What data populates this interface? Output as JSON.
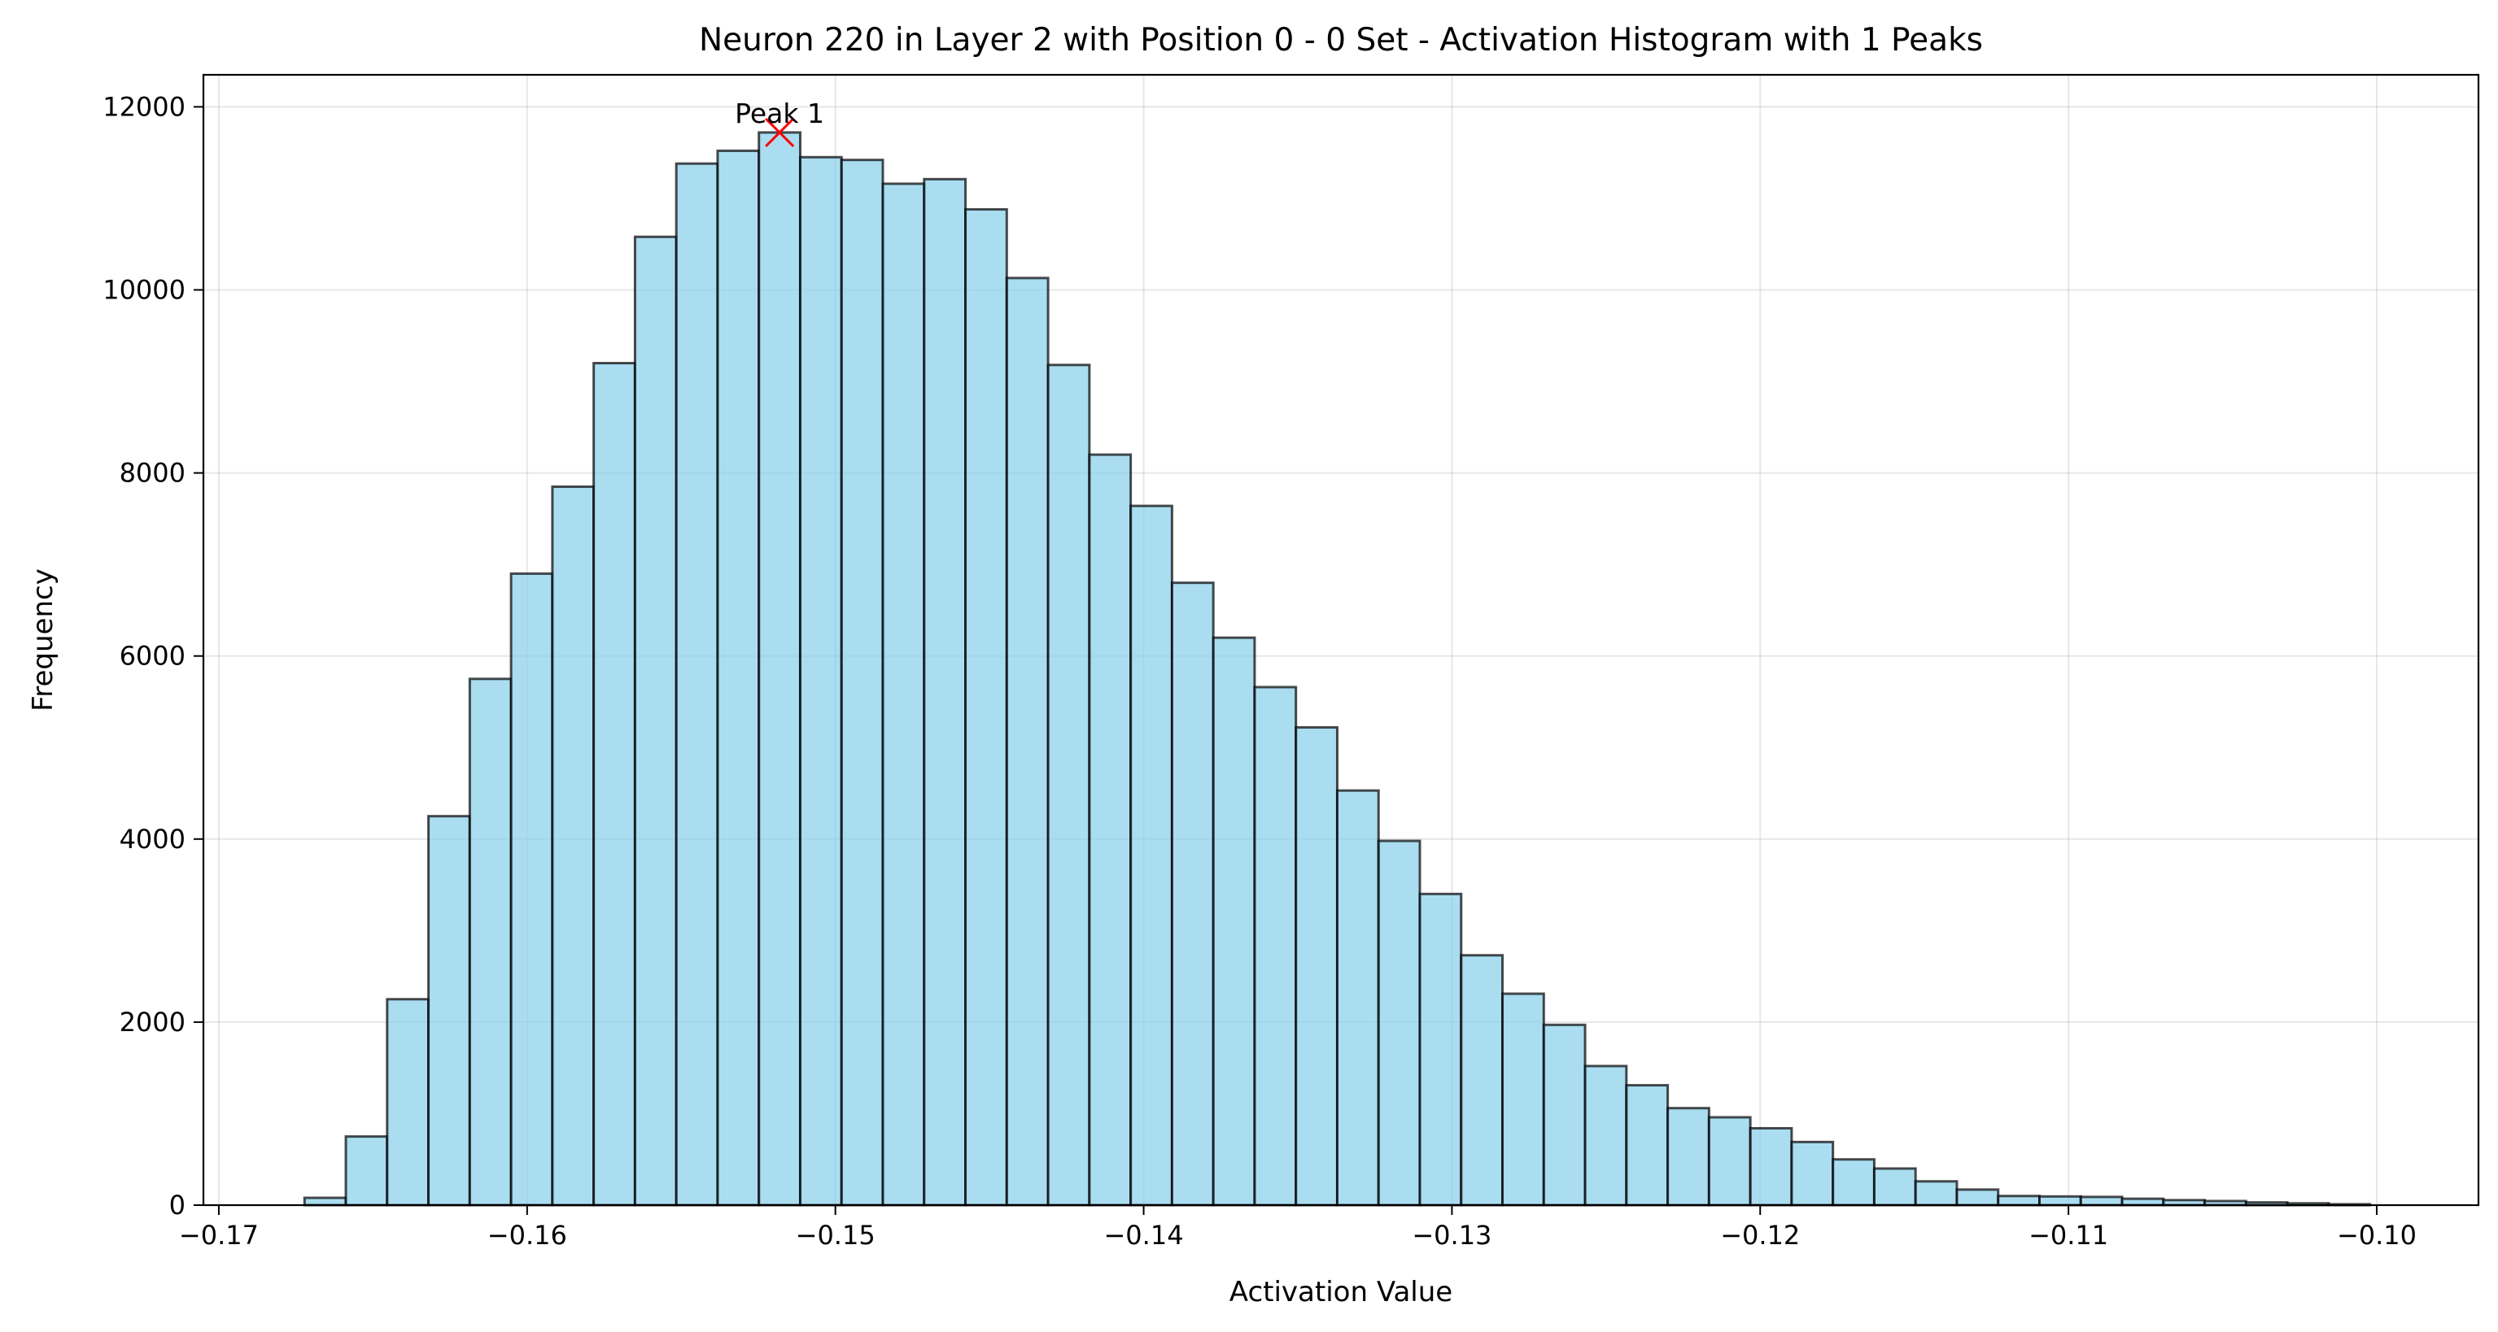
{
  "chart_data": {
    "type": "bar",
    "title": "Neuron 220 in Layer 2 with Position 0 - 0 Set - Activation Histogram with 1 Peaks",
    "xlabel": "Activation Value",
    "ylabel": "Frequency",
    "xlim": [
      -0.1705,
      -0.0967
    ],
    "ylim": [
      0,
      12350
    ],
    "grid": true,
    "colors": {
      "bar_fill": "#87CEEB",
      "bar_edge": "#000000",
      "peak_marker": "#ff0000"
    },
    "x_ticks": [
      {
        "value": -0.17,
        "label": "−0.17"
      },
      {
        "value": -0.16,
        "label": "−0.16"
      },
      {
        "value": -0.15,
        "label": "−0.15"
      },
      {
        "value": -0.14,
        "label": "−0.14"
      },
      {
        "value": -0.13,
        "label": "−0.13"
      },
      {
        "value": -0.12,
        "label": "−0.12"
      },
      {
        "value": -0.11,
        "label": "−0.11"
      },
      {
        "value": -0.1,
        "label": "−0.10"
      }
    ],
    "y_ticks": [
      {
        "value": 0,
        "label": "0"
      },
      {
        "value": 2000,
        "label": "2000"
      },
      {
        "value": 4000,
        "label": "4000"
      },
      {
        "value": 6000,
        "label": "6000"
      },
      {
        "value": 8000,
        "label": "8000"
      },
      {
        "value": 10000,
        "label": "10000"
      },
      {
        "value": 12000,
        "label": "12000"
      }
    ],
    "bin_edges": [
      -0.16722,
      -0.16588,
      -0.16454,
      -0.1632,
      -0.16186,
      -0.16052,
      -0.15918,
      -0.15784,
      -0.1565,
      -0.15516,
      -0.15382,
      -0.15248,
      -0.15114,
      -0.1498,
      -0.14846,
      -0.14712,
      -0.14578,
      -0.14444,
      -0.1431,
      -0.14176,
      -0.14042,
      -0.13908,
      -0.13774,
      -0.1364,
      -0.13506,
      -0.13372,
      -0.13238,
      -0.13104,
      -0.1297,
      -0.12836,
      -0.12702,
      -0.12568,
      -0.12434,
      -0.123,
      -0.12166,
      -0.12032,
      -0.11898,
      -0.11764,
      -0.1163,
      -0.11496,
      -0.11362,
      -0.11228,
      -0.11094,
      -0.1096,
      -0.10826,
      -0.10692,
      -0.10558,
      -0.10424,
      -0.1029,
      -0.10156,
      -0.10022
    ],
    "values": [
      80,
      750,
      2250,
      4250,
      5750,
      6900,
      7850,
      9200,
      10580,
      11380,
      11520,
      11720,
      11450,
      11420,
      11160,
      11210,
      10880,
      10130,
      9180,
      8200,
      7640,
      6800,
      6200,
      5660,
      5220,
      4530,
      3980,
      3400,
      2730,
      2310,
      1970,
      1520,
      1310,
      1060,
      960,
      840,
      690,
      500,
      400,
      260,
      170,
      100,
      95,
      90,
      70,
      55,
      45,
      30,
      20,
      10
    ],
    "peaks": [
      {
        "label": "Peak 1",
        "x": -0.15181,
        "y": 11720
      }
    ]
  }
}
